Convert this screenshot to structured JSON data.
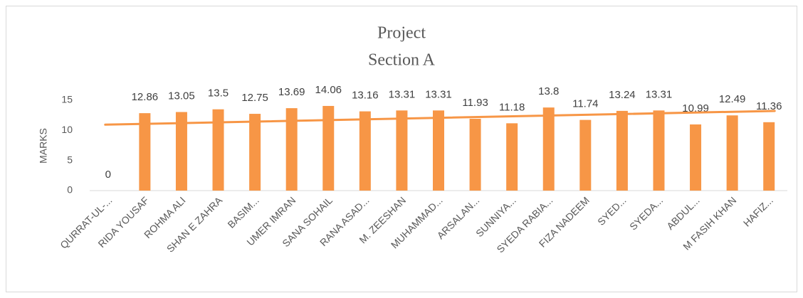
{
  "chart_data": {
    "type": "bar",
    "title": "Project",
    "subtitle": "Section A",
    "y_label": "MARKS",
    "categories": [
      "QURRAT-UL-...",
      "RIDA YOUSAF",
      "ROHMA ALI",
      "SHAN E ZAHRA",
      "BASIM...",
      "UMER IMRAN",
      "SANA SOHAIL",
      "RANA ASAD...",
      "M. ZEESHAN",
      "MUHAMMAD...",
      "ARSALAN...",
      "SUNNIYA...",
      "SYEDA RABIA...",
      "FIZA NADEEM",
      "SYED...",
      "SYEDA...",
      "ABDUL...",
      "M FASIH KHAN",
      "HAFIZ..."
    ],
    "values": [
      0,
      12.86,
      13.05,
      13.5,
      12.75,
      13.69,
      14.06,
      13.16,
      13.31,
      13.31,
      11.93,
      11.18,
      13.8,
      11.74,
      13.24,
      13.31,
      10.99,
      12.49,
      11.36
    ],
    "color": "#f79646",
    "trendline": "linear",
    "data_labels": true,
    "ylim": [
      0,
      15
    ],
    "yticks": [
      0,
      5,
      10,
      15
    ],
    "grid": false
  }
}
